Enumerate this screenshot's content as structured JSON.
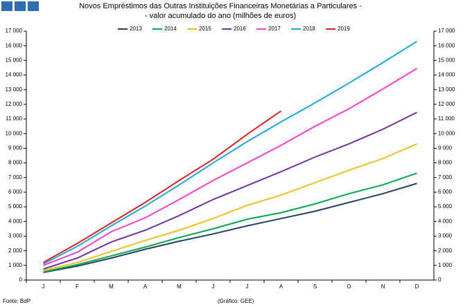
{
  "chart_data": {
    "type": "line",
    "title": "Novos Empréstimos das Outras Instituições Financeiras Monetárias a Particulares -",
    "subtitle": "- valor acumulado do ano (milhões de euros)",
    "source": "Fonte: BdP",
    "credit": "(Gráfico: GEE)",
    "categories": [
      "J",
      "F",
      "M",
      "A",
      "M",
      "J",
      "J",
      "A",
      "S",
      "O",
      "N",
      "D"
    ],
    "series": [
      {
        "name": "2013",
        "color": "#243f60",
        "values": [
          520,
          950,
          1500,
          2100,
          2650,
          3150,
          3700,
          4200,
          4700,
          5300,
          5900,
          6600
        ]
      },
      {
        "name": "2014",
        "color": "#00a650",
        "values": [
          550,
          1050,
          1650,
          2250,
          2900,
          3500,
          4150,
          4600,
          5200,
          5900,
          6500,
          7300
        ]
      },
      {
        "name": "2015",
        "color": "#f0c020",
        "values": [
          650,
          1200,
          1950,
          2700,
          3400,
          4200,
          5100,
          5800,
          6650,
          7500,
          8300,
          9300
        ]
      },
      {
        "name": "2016",
        "color": "#7030a0",
        "values": [
          750,
          1500,
          2600,
          3400,
          4400,
          5500,
          6450,
          7400,
          8400,
          9300,
          10300,
          11450
        ]
      },
      {
        "name": "2017",
        "color": "#ff3dc8",
        "values": [
          1000,
          1900,
          3300,
          4250,
          5500,
          6800,
          8000,
          9200,
          10500,
          11700,
          13050,
          14450
        ]
      },
      {
        "name": "2018",
        "color": "#1aa7e0",
        "values": [
          1100,
          2300,
          3700,
          5050,
          6500,
          8000,
          9450,
          10800,
          12100,
          13450,
          14850,
          16300
        ]
      },
      {
        "name": "2019",
        "color": "#e02020",
        "values": [
          1200,
          2500,
          3900,
          5300,
          6800,
          8250,
          9950,
          11550,
          null,
          null,
          null,
          null
        ]
      }
    ],
    "ylim": [
      0,
      17000
    ],
    "yticks": [
      0,
      {
        "value": 1000,
        "label": "1 000"
      },
      {
        "value": 2000,
        "label": "2 000"
      },
      {
        "value": 3000,
        "label": "3 000"
      },
      {
        "value": 4000,
        "label": "4 000"
      },
      {
        "value": 5000,
        "label": "5 000"
      },
      {
        "value": 6000,
        "label": "6 000"
      },
      {
        "value": 7000,
        "label": "7 000"
      },
      {
        "value": 8000,
        "label": "8 000"
      },
      {
        "value": 9000,
        "label": "9 000"
      },
      {
        "value": 10000,
        "label": "10 000"
      },
      {
        "value": 11000,
        "label": "11 000"
      },
      {
        "value": 12000,
        "label": "12 000"
      },
      {
        "value": 13000,
        "label": "13 000"
      },
      {
        "value": 14000,
        "label": "14 000"
      },
      {
        "value": 15000,
        "label": "15 000"
      },
      {
        "value": 16000,
        "label": "16 000"
      },
      {
        "value": 17000,
        "label": "17 000"
      }
    ],
    "y2lim": [
      0,
      17000
    ],
    "y2ticks": [
      0,
      {
        "value": 1000,
        "label": "1 000"
      },
      {
        "value": 2000,
        "label": "2 000"
      },
      {
        "value": 3000,
        "label": "3 000"
      },
      {
        "value": 4000,
        "label": "4 000"
      },
      {
        "value": 5000,
        "label": "5 000"
      },
      {
        "value": 6000,
        "label": "6 000"
      },
      {
        "value": 7000,
        "label": "7 000"
      },
      {
        "value": 8000,
        "label": "8 000"
      },
      {
        "value": 9000,
        "label": "9 000"
      },
      {
        "value": 10000,
        "label": "10 000"
      },
      {
        "value": 11000,
        "label": "11 000"
      },
      {
        "value": 12000,
        "label": "12 000"
      },
      {
        "value": 13000,
        "label": "13 000"
      },
      {
        "value": 14000,
        "label": "14 000"
      },
      {
        "value": 15000,
        "label": "15 000"
      },
      {
        "value": 16000,
        "label": "16 000"
      },
      {
        "value": 17000,
        "label": "17 000"
      }
    ],
    "legend": "top",
    "grid": false
  }
}
